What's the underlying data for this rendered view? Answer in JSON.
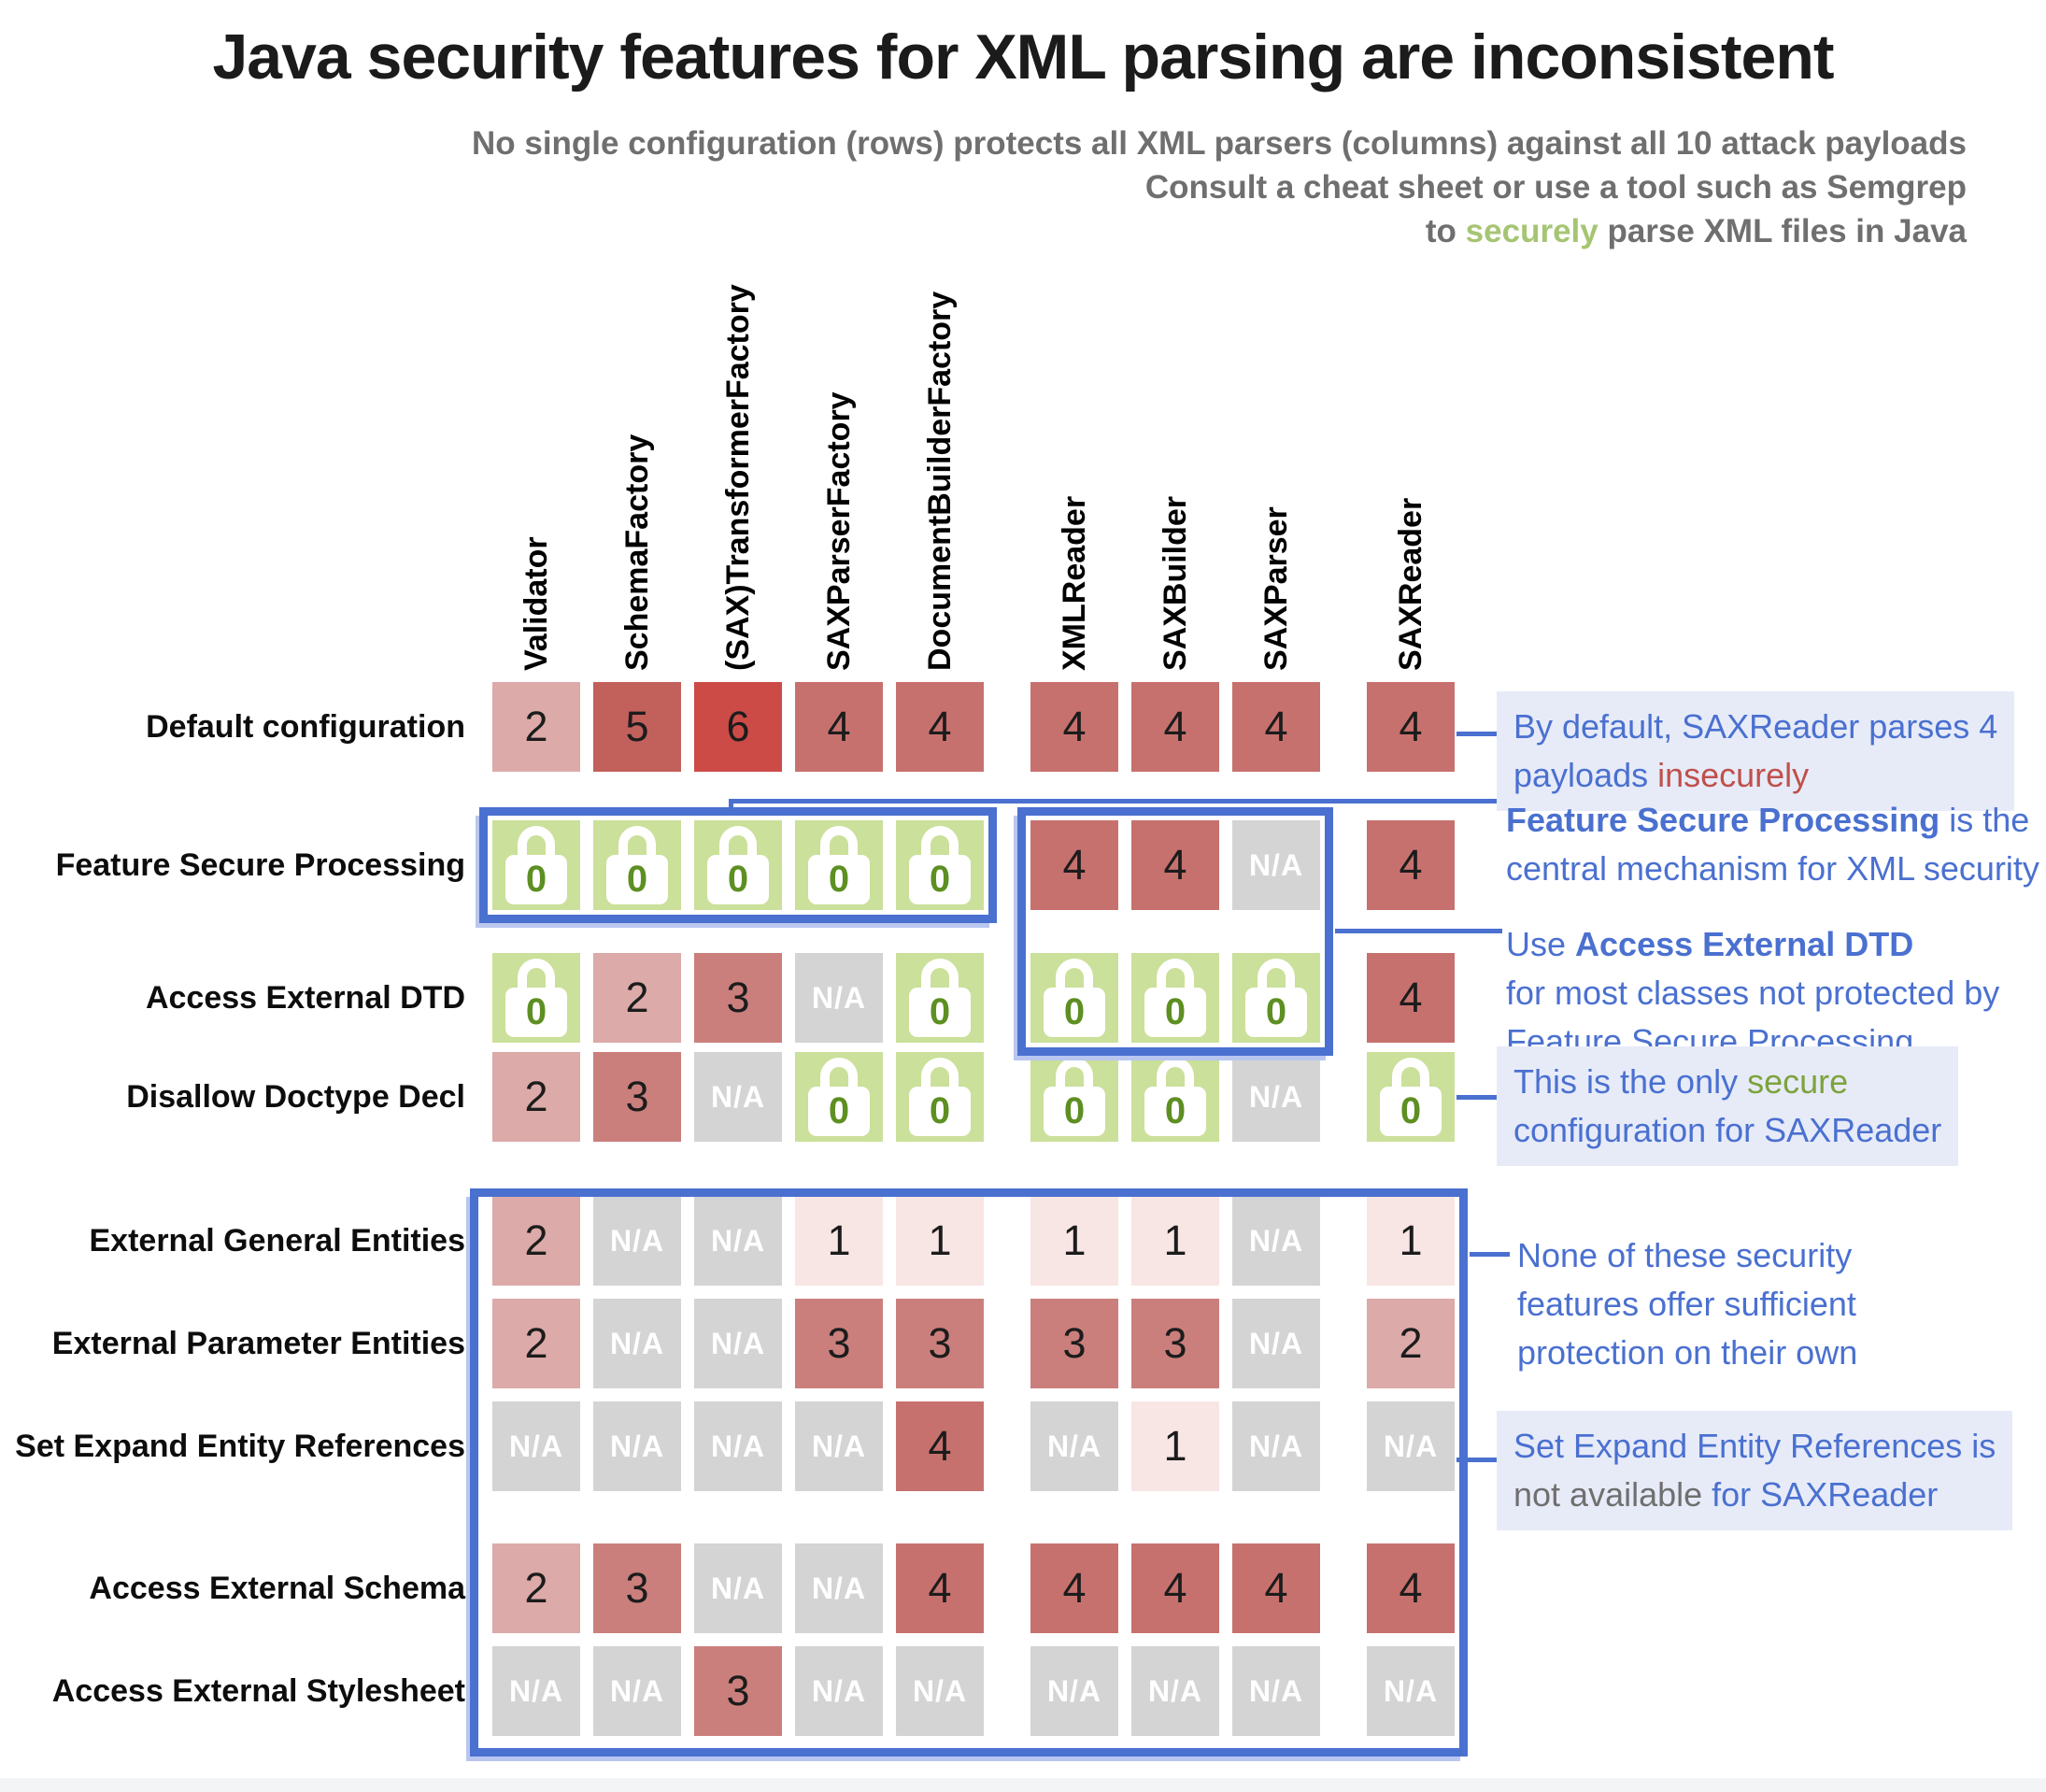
{
  "title": "Java security features for XML parsing are inconsistent",
  "subtitle": {
    "line1": "No single configuration (rows) protects all XML parsers (columns) against all 10 attack payloads",
    "line2": "Consult a cheat sheet or use a tool such as Semgrep",
    "line3_prefix": "to ",
    "line3_highlight": "securely",
    "line3_suffix": " parse XML files in Java"
  },
  "chart_data": {
    "type": "heatmap",
    "title": "Java security features for XML parsing are inconsistent",
    "columns": [
      "Validator",
      "SchemaFactory",
      "(SAX)TransformerFactory",
      "SAXParserFactory",
      "DocumentBuilderFactory",
      "XMLReader",
      "SAXBuilder",
      "SAXParser",
      "SAXReader"
    ],
    "column_groups": [
      [
        "Validator",
        "SchemaFactory",
        "(SAX)TransformerFactory",
        "SAXParserFactory",
        "DocumentBuilderFactory"
      ],
      [
        "XMLReader",
        "SAXBuilder",
        "SAXParser"
      ],
      [
        "SAXReader"
      ]
    ],
    "rows": [
      "Default configuration",
      "Feature Secure Processing",
      "Access External DTD",
      "Disallow Doctype Decl",
      "External General Entities",
      "External Parameter Entities",
      "Set Expand Entity References",
      "Access External Schema",
      "Access External Stylesheet"
    ],
    "values": [
      [
        "2",
        "5",
        "6",
        "4",
        "4",
        "4",
        "4",
        "4",
        "4"
      ],
      [
        "0",
        "0",
        "0",
        "0",
        "0",
        "4",
        "4",
        "N/A",
        "4"
      ],
      [
        "0",
        "2",
        "3",
        "N/A",
        "0",
        "0",
        "0",
        "0",
        "4"
      ],
      [
        "2",
        "3",
        "N/A",
        "0",
        "0",
        "0",
        "0",
        "N/A",
        "0"
      ],
      [
        "2",
        "N/A",
        "N/A",
        "1",
        "1",
        "1",
        "1",
        "N/A",
        "1"
      ],
      [
        "2",
        "N/A",
        "N/A",
        "3",
        "3",
        "3",
        "3",
        "N/A",
        "2"
      ],
      [
        "N/A",
        "N/A",
        "N/A",
        "N/A",
        "4",
        "N/A",
        "1",
        "N/A",
        "N/A"
      ],
      [
        "2",
        "3",
        "N/A",
        "N/A",
        "4",
        "4",
        "4",
        "4",
        "4"
      ],
      [
        "N/A",
        "N/A",
        "3",
        "N/A",
        "N/A",
        "N/A",
        "N/A",
        "N/A",
        "N/A"
      ]
    ]
  },
  "annotations": [
    {
      "bg": true,
      "lines": [
        [
          {
            "t": "By default, SAXReader parses 4"
          }
        ],
        [
          {
            "t": "payloads "
          },
          {
            "t": "insecurely",
            "c": "red"
          }
        ]
      ]
    },
    {
      "bg": false,
      "lines": [
        [
          {
            "t": "Feature Secure Processing",
            "b": true
          },
          {
            "t": " is the"
          }
        ],
        [
          {
            "t": "central mechanism for XML security"
          }
        ]
      ]
    },
    {
      "bg": false,
      "lines": [
        [
          {
            "t": "Use "
          },
          {
            "t": "Access External DTD",
            "b": true
          }
        ],
        [
          {
            "t": "for most classes not protected by"
          }
        ],
        [
          {
            "t": "Feature Secure Processing"
          }
        ]
      ]
    },
    {
      "bg": true,
      "lines": [
        [
          {
            "t": "This is the only "
          },
          {
            "t": "secure",
            "c": "green"
          }
        ],
        [
          {
            "t": "configuration for SAXReader"
          }
        ]
      ]
    },
    {
      "bg": false,
      "lines": [
        [
          {
            "t": "None of these security"
          }
        ],
        [
          {
            "t": "features offer sufficient"
          }
        ],
        [
          {
            "t": "protection on their own"
          }
        ]
      ]
    },
    {
      "bg": true,
      "lines": [
        [
          {
            "t": "Set Expand Entity References is"
          }
        ],
        [
          {
            "t": "not available",
            "c": "gray"
          },
          {
            "t": " for SAXReader"
          }
        ]
      ]
    }
  ],
  "colors": {
    "accent_blue": "#4a70d0",
    "annotation_bg": "#e7ebf8",
    "insecure_red": "#c0504b",
    "secure_green": "#7da33c",
    "subtitle_green": "#a6c573",
    "subtitle_gray": "#6f6f6f",
    "na_bg": "#d4d4d4",
    "lock_bg": "#cbe09a",
    "lock_zero": "#5d8f22",
    "value_colors": {
      "1": "#f8e6e4",
      "2": "#dcaaa8",
      "3": "#ca7f7c",
      "4": "#c7716e",
      "5": "#c2605c",
      "6": "#cc4b47"
    }
  }
}
